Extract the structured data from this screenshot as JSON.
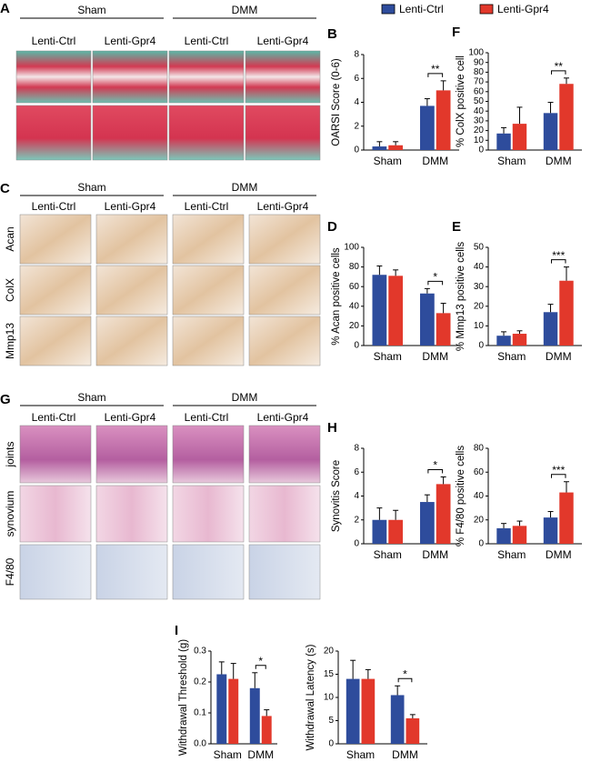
{
  "legend": [
    {
      "name": "Lenti-Ctrl",
      "color": "#2e4c9c"
    },
    {
      "name": "Lenti-Gpr4",
      "color": "#e2382b"
    }
  ],
  "panels": [
    {
      "letter": "A",
      "groups": [
        "Sham",
        "DMM"
      ],
      "columns": [
        "Lenti-Ctrl",
        "Lenti-Gpr4",
        "Lenti-Ctrl",
        "Lenti-Gpr4"
      ]
    },
    {
      "letter": "C",
      "groups": [
        "Sham",
        "DMM"
      ],
      "columns": [
        "Lenti-Ctrl",
        "Lenti-Gpr4",
        "Lenti-Ctrl",
        "Lenti-Gpr4"
      ],
      "rows": [
        "Acan",
        "ColX",
        "Mmp13"
      ]
    },
    {
      "letter": "G",
      "groups": [
        "Sham",
        "DMM"
      ],
      "columns": [
        "Lenti-Ctrl",
        "Lenti-Gpr4",
        "Lenti-Ctrl",
        "Lenti-Gpr4"
      ],
      "rows": [
        "joints",
        "synovium",
        "F4/80"
      ]
    }
  ],
  "chart_data": [
    {
      "type": "bar",
      "panel": "B",
      "ylabel": "OARSI Score (0-6)",
      "categories": [
        "Sham",
        "DMM"
      ],
      "ylim": [
        0,
        8
      ],
      "yticks": [
        0,
        2,
        4,
        6,
        8
      ],
      "series": [
        {
          "values": [
            0.3,
            3.7
          ],
          "errors": [
            0.4,
            0.6
          ]
        },
        {
          "values": [
            0.4,
            5.0
          ],
          "errors": [
            0.3,
            0.8
          ]
        }
      ],
      "significance": "**"
    },
    {
      "type": "bar",
      "panel": "F",
      "ylabel": "% ColX positive cell",
      "categories": [
        "Sham",
        "DMM"
      ],
      "ylim": [
        0,
        100
      ],
      "yticks": [
        0,
        10,
        20,
        30,
        40,
        50,
        60,
        70,
        80,
        90,
        100
      ],
      "series": [
        {
          "values": [
            17,
            38
          ],
          "errors": [
            6,
            11
          ]
        },
        {
          "values": [
            27,
            68
          ],
          "errors": [
            17,
            6
          ]
        }
      ],
      "significance": "**"
    },
    {
      "type": "bar",
      "panel": "D",
      "ylabel": "% Acan positive cells",
      "categories": [
        "Sham",
        "DMM"
      ],
      "ylim": [
        0,
        100
      ],
      "yticks": [
        0,
        20,
        40,
        60,
        80,
        100
      ],
      "series": [
        {
          "values": [
            72,
            53
          ],
          "errors": [
            9,
            5
          ]
        },
        {
          "values": [
            71,
            33
          ],
          "errors": [
            6,
            10
          ]
        }
      ],
      "significance": "*"
    },
    {
      "type": "bar",
      "panel": "E",
      "ylabel": "% Mmp13 positive cells",
      "categories": [
        "Sham",
        "DMM"
      ],
      "ylim": [
        0,
        50
      ],
      "yticks": [
        0,
        10,
        20,
        30,
        40,
        50
      ],
      "series": [
        {
          "values": [
            5,
            17
          ],
          "errors": [
            2,
            4
          ]
        },
        {
          "values": [
            6,
            33
          ],
          "errors": [
            1.5,
            7
          ]
        }
      ],
      "significance": "***"
    },
    {
      "type": "bar",
      "panel": "H",
      "ylabel": "Synovitis Score",
      "categories": [
        "Sham",
        "DMM"
      ],
      "ylim": [
        0,
        8
      ],
      "yticks": [
        0,
        2,
        4,
        6,
        8
      ],
      "series": [
        {
          "values": [
            2,
            3.5
          ],
          "errors": [
            1,
            0.6
          ]
        },
        {
          "values": [
            2,
            5
          ],
          "errors": [
            0.8,
            0.6
          ]
        }
      ],
      "significance": "*"
    },
    {
      "type": "bar",
      "ylabel": "% F4/80 positive cells",
      "categories": [
        "Sham",
        "DMM"
      ],
      "ylim": [
        0,
        80
      ],
      "yticks": [
        0,
        20,
        40,
        60,
        80
      ],
      "series": [
        {
          "values": [
            13,
            22
          ],
          "errors": [
            4,
            5
          ]
        },
        {
          "values": [
            15,
            43
          ],
          "errors": [
            4,
            9
          ]
        }
      ],
      "significance": "***"
    },
    {
      "type": "bar",
      "panel": "I",
      "ylabel": "Withdrawal Threshold (g)",
      "categories": [
        "Sham",
        "DMM"
      ],
      "ylim": [
        0,
        0.3
      ],
      "yticks": [
        {
          "value": 0,
          "label": "0.0"
        },
        0.1,
        0.2,
        0.3
      ],
      "series": [
        {
          "values": [
            0.225,
            0.18
          ],
          "errors": [
            0.04,
            0.05
          ]
        },
        {
          "values": [
            0.21,
            0.09
          ],
          "errors": [
            0.05,
            0.02
          ]
        }
      ],
      "significance": "*"
    },
    {
      "type": "bar",
      "ylabel": "Withdrawal Latency (s)",
      "categories": [
        "Sham",
        "DMM"
      ],
      "ylim": [
        0,
        20
      ],
      "yticks": [
        0,
        5,
        10,
        15,
        20
      ],
      "series": [
        {
          "values": [
            14,
            10.5
          ],
          "errors": [
            4,
            2
          ]
        },
        {
          "values": [
            14,
            5.5
          ],
          "errors": [
            2,
            0.8
          ]
        }
      ],
      "significance": "*"
    }
  ]
}
